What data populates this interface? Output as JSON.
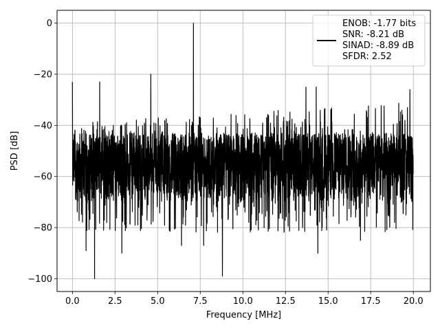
{
  "chart_data": {
    "type": "line",
    "xlabel": "Frequency [MHz]",
    "ylabel": "PSD [dB]",
    "xlim": [
      -0.9,
      21.0
    ],
    "ylim": [
      -105,
      5
    ],
    "xticks": [
      0.0,
      2.5,
      5.0,
      7.5,
      10.0,
      12.5,
      15.0,
      17.5,
      20.0
    ],
    "xtick_labels": [
      "0.0",
      "2.5",
      "5.0",
      "7.5",
      "10.0",
      "12.5",
      "15.0",
      "17.5",
      "20.0"
    ],
    "yticks": [
      0,
      -20,
      -40,
      -60,
      -80,
      -100
    ],
    "ytick_labels": [
      "0",
      "−20",
      "−40",
      "−60",
      "−80",
      "−100"
    ],
    "grid": true,
    "legend_position": "top-right",
    "legend": {
      "lines": [
        "ENOB: -1.77 bits",
        "SNR: -8.21 dB",
        "SINAD: -8.89 dB",
        "SFDR: 2.52"
      ]
    },
    "series": [
      {
        "color": "#000000",
        "x_range": [
          0,
          20
        ],
        "noise_floor_db": -55,
        "noise_upper_db": -43,
        "noise_lower_db": -70,
        "peaks": [
          {
            "x": 0.0,
            "y": -23
          },
          {
            "x": 1.6,
            "y": -23
          },
          {
            "x": 4.6,
            "y": -20
          },
          {
            "x": 7.1,
            "y": 0
          },
          {
            "x": 13.7,
            "y": -25
          },
          {
            "x": 14.3,
            "y": -25
          },
          {
            "x": 19.8,
            "y": -26
          }
        ],
        "dips": [
          {
            "x": 0.8,
            "y": -89
          },
          {
            "x": 1.3,
            "y": -100
          },
          {
            "x": 2.9,
            "y": -90
          },
          {
            "x": 6.4,
            "y": -87
          },
          {
            "x": 7.7,
            "y": -87
          },
          {
            "x": 8.8,
            "y": -99
          },
          {
            "x": 14.4,
            "y": -90
          },
          {
            "x": 16.9,
            "y": -85
          }
        ]
      }
    ]
  }
}
